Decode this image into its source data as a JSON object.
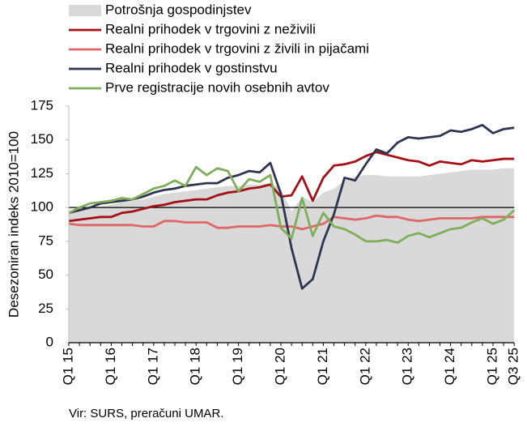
{
  "chart_data": {
    "type": "line",
    "y_label": "Desezoniran indeks 2010=100",
    "source": "Vir: SURS, preračuni UMAR.",
    "categories": [
      "Q1 15",
      null,
      null,
      null,
      "Q1 16",
      null,
      null,
      null,
      "Q1 17",
      null,
      null,
      null,
      "Q1 18",
      null,
      null,
      null,
      "Q1 19",
      null,
      null,
      null,
      "Q1 20",
      null,
      null,
      null,
      "Q1 21",
      null,
      null,
      null,
      "Q1 22",
      null,
      null,
      null,
      "Q1 23",
      null,
      null,
      null,
      "Q1 24",
      null,
      null,
      null,
      "Q1 25",
      null,
      "Q3 25"
    ],
    "ylim": [
      0,
      175
    ],
    "yticks": [
      0,
      25,
      50,
      75,
      100,
      125,
      150,
      175
    ],
    "reference_line": 100,
    "series": [
      {
        "name": "Potrošnja gospodinjstev",
        "kind": "area",
        "color": "#d9d9d9",
        "values": [
          97,
          99,
          100,
          101,
          102,
          104,
          105,
          106,
          108,
          110,
          111,
          112,
          113,
          114,
          115,
          116,
          116,
          117,
          117,
          118,
          114,
          97,
          108,
          104,
          111,
          114,
          120,
          123,
          124,
          124,
          123,
          123,
          123,
          123,
          124,
          125,
          126,
          127,
          128,
          128,
          128,
          129,
          129
        ]
      },
      {
        "name": "Realni prihodek v trgovini z neživili",
        "kind": "line",
        "color": "#a50f15",
        "values": [
          90,
          91,
          92,
          93,
          93,
          96,
          97,
          99,
          101,
          102,
          104,
          105,
          106,
          106,
          109,
          111,
          112,
          114,
          115,
          117,
          108,
          109,
          123,
          105,
          122,
          131,
          132,
          134,
          138,
          141,
          139,
          137,
          135,
          134,
          131,
          134,
          133,
          132,
          135,
          134,
          135,
          136,
          136
        ]
      },
      {
        "name": "Realni prihodek v trgovini z živili in pijačami",
        "kind": "line",
        "color": "#e06666",
        "values": [
          88,
          87,
          87,
          87,
          87,
          87,
          87,
          86,
          86,
          90,
          90,
          89,
          89,
          89,
          85,
          85,
          86,
          86,
          86,
          87,
          86,
          86,
          84,
          86,
          88,
          93,
          92,
          91,
          92,
          94,
          93,
          93,
          91,
          90,
          91,
          92,
          92,
          92,
          92,
          93,
          93,
          93,
          93
        ]
      },
      {
        "name": "Realni prihodek v gostinstvu",
        "kind": "line",
        "color": "#2f3550",
        "values": [
          96,
          98,
          100,
          103,
          104,
          105,
          106,
          108,
          111,
          113,
          114,
          116,
          117,
          118,
          118,
          122,
          124,
          127,
          126,
          133,
          110,
          70,
          40,
          47,
          75,
          95,
          122,
          120,
          132,
          143,
          140,
          148,
          152,
          151,
          152,
          153,
          157,
          156,
          158,
          161,
          155,
          158,
          159
        ]
      },
      {
        "name": "Prve registracije novih osebnih avtov",
        "kind": "line",
        "color": "#7fae5a",
        "values": [
          96,
          100,
          103,
          104,
          105,
          107,
          106,
          110,
          114,
          116,
          120,
          116,
          130,
          124,
          129,
          127,
          112,
          121,
          119,
          124,
          85,
          77,
          107,
          79,
          96,
          86,
          84,
          80,
          75,
          75,
          76,
          74,
          79,
          81,
          78,
          81,
          84,
          85,
          89,
          92,
          88,
          91,
          98
        ]
      }
    ]
  }
}
